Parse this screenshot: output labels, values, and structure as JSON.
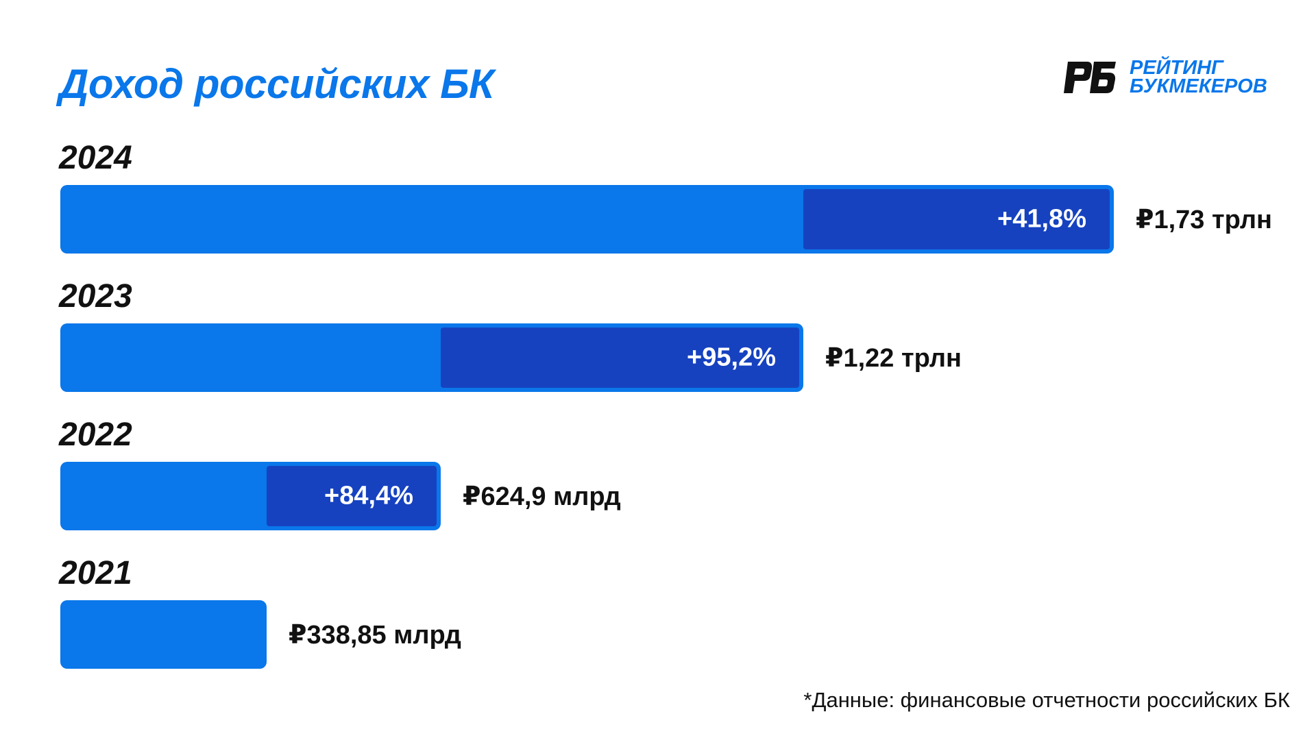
{
  "title": "Доход российских БК",
  "logo": {
    "line1": "РЕЙТИНГ",
    "line2": "БУКМЕКЕРОВ",
    "mark_text": "РБ"
  },
  "colors": {
    "bar": "#0a77ea",
    "growth_segment": "#1642c0",
    "title": "#0a77ea",
    "text": "#111111"
  },
  "chart_data": {
    "type": "bar",
    "orientation": "horizontal",
    "unit": "трлн ₽",
    "categories": [
      "2024",
      "2023",
      "2022",
      "2021"
    ],
    "values": [
      1.73,
      1.22,
      0.6249,
      0.33885
    ],
    "value_labels": [
      "₽1,73 трлн",
      "₽1,22 трлн",
      "₽624,9 млрд",
      "₽338,85 млрд"
    ],
    "growth_labels": [
      "+41,8%",
      "+95,2%",
      "+84,4%",
      ""
    ],
    "previous_values": [
      1.22,
      0.6249,
      0.33885,
      null
    ],
    "xlim": [
      0,
      1.73
    ],
    "grid": false,
    "legend": "none"
  },
  "footnote": "*Данные: финансовые отчетности российских БК"
}
